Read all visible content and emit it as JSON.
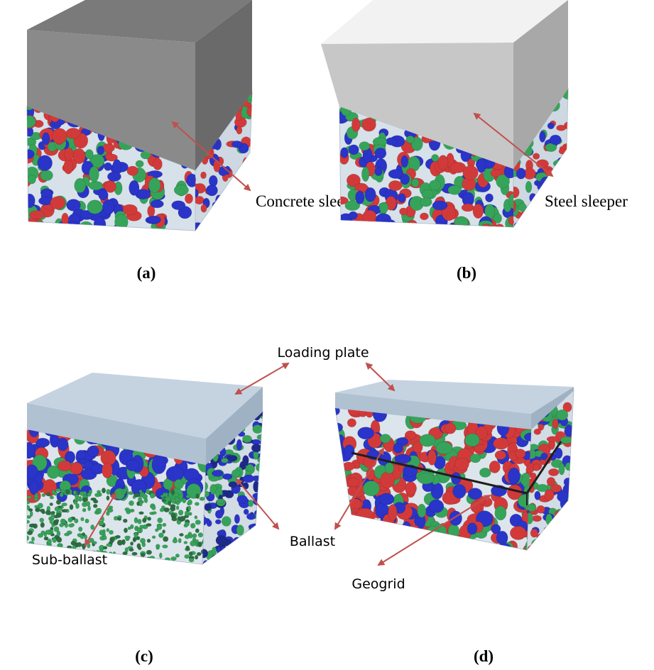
{
  "panels": {
    "a": {
      "caption": "(a)",
      "label": "Concrete sleeper"
    },
    "b": {
      "caption": "(b)",
      "label": "Steel sleeper"
    },
    "c": {
      "caption": "(c)",
      "labels": {
        "sub_ballast": "Sub-ballast"
      }
    },
    "d": {
      "caption": "(d)",
      "labels": {
        "geogrid": "Geogrid"
      }
    },
    "shared_labels": {
      "loading_plate": "Loading plate",
      "ballast": "Ballast"
    }
  },
  "colors": {
    "arrow": "#c0504d",
    "particle_red": "#d23a3a",
    "particle_green": "#36a35a",
    "particle_blue": "#2a34c8",
    "container": "#c9d6e3",
    "concrete_top": "#7c7c7c",
    "steel_top": "#ececec",
    "plate_top": "#c3d1de",
    "geogrid": "#1e1e1e"
  }
}
